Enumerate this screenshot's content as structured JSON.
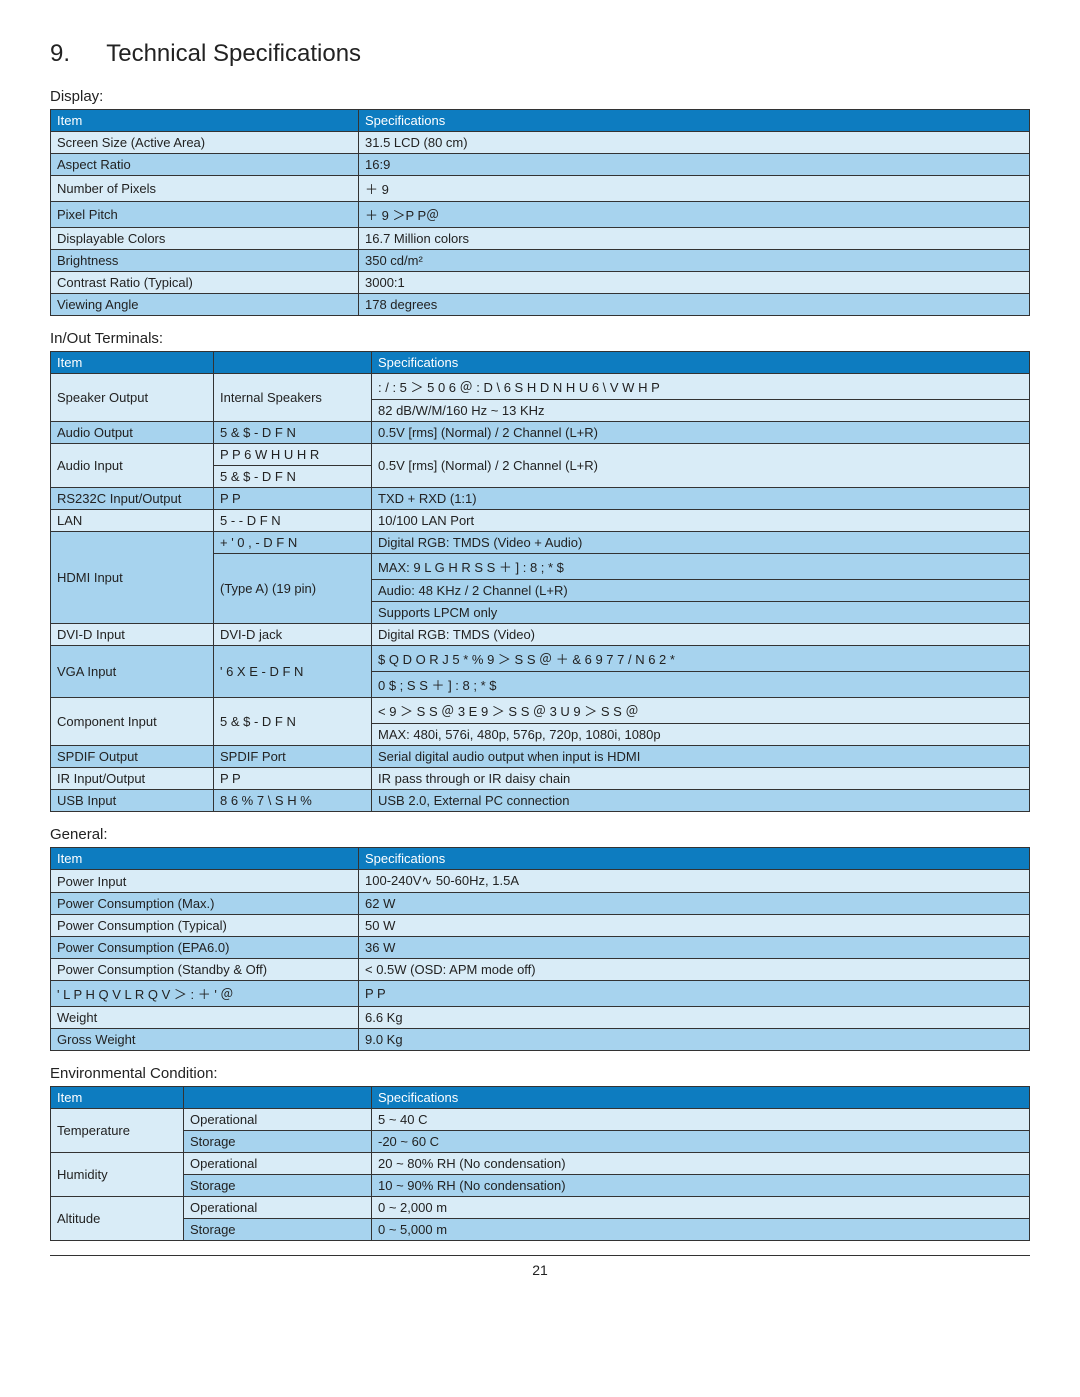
{
  "heading": {
    "num": "9.",
    "title": "Technical Specifications"
  },
  "page_number": "21",
  "tables": {
    "display": {
      "title": "Display:",
      "headers": [
        "Item",
        "Specifications"
      ],
      "rows": [
        [
          "Screen Size (Active Area)",
          "31.5  LCD (80 cm)"
        ],
        [
          "Aspect Ratio",
          "16:9"
        ],
        [
          "Number of Pixels",
          "              ＋                 9"
        ],
        [
          "Pixel Pitch",
          "                  ＋                    9   ＞P P＠"
        ],
        [
          "Displayable Colors",
          "16.7 Million colors"
        ],
        [
          "Brightness",
          "350 cd/m²"
        ],
        [
          "Contrast Ratio (Typical)",
          "3000:1"
        ],
        [
          "Viewing Angle",
          "178 degrees"
        ]
      ]
    },
    "inout": {
      "title": "In/Out Terminals:",
      "headers": [
        "Item",
        "Specifications"
      ]
    },
    "general": {
      "title": "General:",
      "headers": [
        "Item",
        "Specifications"
      ],
      "rows": [
        [
          "Power Input",
          "100-240V∿ 50-60Hz, 1.5A"
        ],
        [
          "Power Consumption (Max.)",
          "62 W"
        ],
        [
          "Power Consumption (Typical)",
          "50 W"
        ],
        [
          "Power Consumption (EPA6.0)",
          "36 W"
        ],
        [
          "Power Consumption (Standby & Off)",
          "< 0.5W (OSD: APM mode off)"
        ],
        [
          "' L P H Q V L R Q V   ＞ :     ＋     ' ＠",
          "                                      P P"
        ],
        [
          "Weight",
          "6.6 Kg"
        ],
        [
          "Gross Weight",
          "9.0 Kg"
        ]
      ]
    },
    "env": {
      "title": "Environmental Condition:",
      "headers": [
        "Item",
        "Specifications"
      ]
    }
  },
  "inout_rows": {
    "r1": {
      "a": "Speaker Output",
      "b": "Internal Speakers",
      "c": "    :      /        :     5    ＞ 5 0 6 ＠             : D \\       6 S H D N H U   6 \\ V W H P"
    },
    "r1b": {
      "c": "82 dB/W/M/160 Hz ~ 13 KHz"
    },
    "r2": {
      "a": "Audio Output",
      "b": "5 & $    - D F N",
      "c": "0.5V [rms] (Normal) / 2 Channel (L+R)"
    },
    "r3": {
      "a": "Audio Input",
      "b": "     P P   6 W H U H R",
      "c": "0.5V [rms] (Normal) / 2 Channel (L+R)"
    },
    "r3b": {
      "b": "5 & $    - D F N"
    },
    "r4": {
      "a": "RS232C Input/Output",
      "b": "     P P",
      "c": "TXD + RXD (1:1)"
    },
    "r5": {
      "a": "LAN",
      "b": "5 -        - D F N",
      "c": "10/100 LAN Port"
    },
    "r6": {
      "a": "HDMI Input",
      "b": "+ ' 0 ,    - D F N",
      "c": "Digital RGB: TMDS (Video + Audio)"
    },
    "r6b": {
      "b": "(Type A) (19 pin)",
      "c": "MAX:  9 L G H R        S            S                                  ＋ ]     : 8 ; * $"
    },
    "r6c": {
      "c": "     Audio: 48 KHz / 2 Channel (L+R)"
    },
    "r6d": {
      "c": "Supports LPCM only"
    },
    "r7": {
      "a": "DVI-D Input",
      "b": "DVI-D jack",
      "c": "Digital RGB: TMDS (Video)"
    },
    "r8": {
      "a": "VGA Input",
      "b": "'   6 X E    - D F N",
      "c": "$ Q D O R J   5 * %           9   ＞ S   S ＠              ＋   & 6   9    7 7 /        N        6 2 *"
    },
    "r8b": {
      "c": "0 $ ;         S            S                   ＋ ]     : 8 ; * $"
    },
    "r9": {
      "a": "Component Input",
      "b": "5 & $    - D F N",
      "c": "<        9   ＞ S   S ＠              3 E        9   ＞ S   S ＠              3 U        9   ＞ S   S ＠"
    },
    "r9b": {
      "c": "MAX: 480i, 576i, 480p, 576p, 720p, 1080i, 1080p"
    },
    "r10": {
      "a": "SPDIF Output",
      "b": "SPDIF Port",
      "c": "Serial digital audio output when input is HDMI"
    },
    "r11": {
      "a": "IR Input/Output",
      "b": "     P P",
      "c": "IR pass through or IR daisy chain"
    },
    "r12": {
      "a": "USB Input",
      "b": "8 6 %         7 \\ S H   %",
      "c": "USB 2.0, External PC connection"
    }
  },
  "env_rows": {
    "temp": {
      "label": "Temperature",
      "op": "Operational",
      "op_v": "5 ~ 40 C",
      "st": "Storage",
      "st_v": "-20 ~ 60 C"
    },
    "hum": {
      "label": "Humidity",
      "op": "Operational",
      "op_v": "20 ~ 80% RH (No condensation)",
      "st": "Storage",
      "st_v": "10 ~ 90% RH (No condensation)"
    },
    "alt": {
      "label": "Altitude",
      "op": "Operational",
      "op_v": "0 ~ 2,000 m",
      "st": "Storage",
      "st_v": "0 ~ 5,000 m"
    }
  },
  "colors": {
    "header_bg": "#0d7cc0",
    "row_odd": "#d9ecf7",
    "row_even": "#a7d3ee"
  }
}
